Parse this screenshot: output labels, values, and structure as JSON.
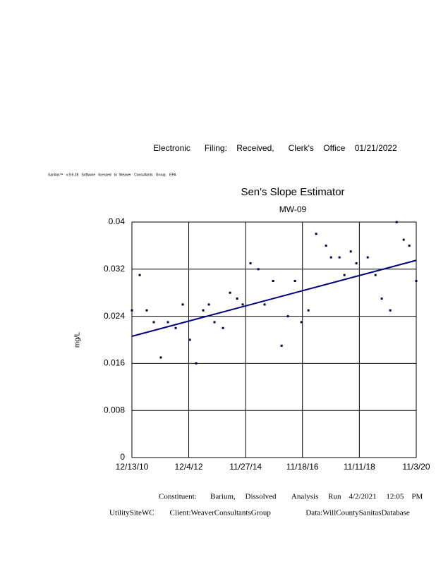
{
  "page": {
    "filing": "Electronic      Filing:    Received,      Clerk's    Office    01/21/2022",
    "software": "Sanitas™   v.9.6.28   Software   licensed   to  Weaver   Consultants   Group.   EPA",
    "footer": [
      "Constituent:       Barium,     Dissolved        Analysis     Run    4/2/2021     12:05    PM",
      "UtilitySiteWC        Client:WeaverConsultantsGroup                  Data:WillCountySanitasDatabase"
    ]
  },
  "chart_data": {
    "type": "scatter",
    "title": "Sen's Slope Estimator",
    "subtitle": "MW-09",
    "y_label": "mg/L",
    "xlim": [
      "12/13/10",
      "11/3/20"
    ],
    "xticks": [
      "12/13/10",
      "12/4/12",
      "11/27/14",
      "11/18/16",
      "11/11/18",
      "11/3/20"
    ],
    "ylim": [
      0,
      0.04
    ],
    "yticks": [
      0,
      0.008,
      0.016,
      0.024,
      0.032,
      0.04
    ],
    "grid": true,
    "series": [
      {
        "color": "#000040",
        "x": [
          "12/13/10",
          "3/22/11",
          "6/19/11",
          "9/17/11",
          "12/15/11",
          "3/14/12",
          "6/21/12",
          "9/19/12",
          "12/18/12",
          "3/8/13",
          "6/6/13",
          "8/17/13",
          "10/27/13",
          "2/12/14",
          "5/13/14",
          "8/11/14",
          "10/21/14",
          "1/28/15",
          "5/7/15",
          "7/26/15",
          "11/11/15",
          "2/27/16",
          "5/17/16",
          "8/15/16",
          "11/4/16",
          "2/2/17",
          "5/11/17",
          "9/14/17",
          "11/16/17",
          "3/3/18",
          "5/5/18",
          "7/25/18",
          "10/4/18",
          "2/25/19",
          "6/4/19",
          "8/23/19",
          "12/9/19",
          "2/28/20",
          "5/27/20",
          "8/7/20",
          "11/3/20"
        ],
        "values": [
          0.025,
          0.031,
          0.025,
          0.023,
          0.017,
          0.023,
          0.022,
          0.026,
          0.02,
          0.016,
          0.025,
          0.026,
          0.023,
          0.022,
          0.028,
          0.027,
          0.026,
          0.033,
          0.032,
          0.026,
          0.03,
          0.019,
          0.024,
          0.03,
          0.023,
          0.025,
          0.038,
          0.036,
          0.034,
          0.034,
          0.031,
          0.035,
          0.033,
          0.034,
          0.031,
          0.027,
          0.025,
          0.04,
          0.037,
          0.036,
          0.03
        ]
      }
    ],
    "trend": {
      "color": "#000080",
      "x": [
        "12/13/10",
        "11/3/20"
      ],
      "values": [
        0.0206,
        0.0335
      ]
    }
  }
}
